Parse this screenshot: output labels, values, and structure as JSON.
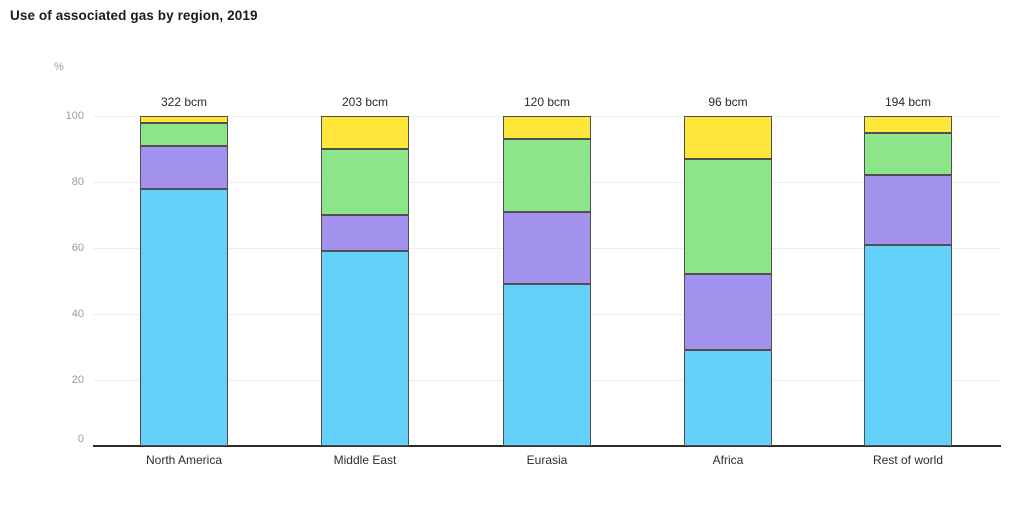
{
  "chart_data": {
    "type": "bar",
    "stacked": true,
    "title": "Use of associated gas by region, 2019",
    "unit_label": "%",
    "categories": [
      "North America",
      "Middle East",
      "Eurasia",
      "Africa",
      "Rest of world"
    ],
    "totals": [
      "322 bcm",
      "203 bcm",
      "120 bcm",
      "96 bcm",
      "194 bcm"
    ],
    "series": [
      {
        "name": "series-blue",
        "color": "#63d1fa",
        "values": [
          78,
          59,
          49,
          29,
          61
        ]
      },
      {
        "name": "series-purple",
        "color": "#a392ed",
        "values": [
          13,
          11,
          22,
          23,
          21
        ]
      },
      {
        "name": "series-green",
        "color": "#8de58a",
        "values": [
          7,
          20,
          22,
          35,
          13
        ]
      },
      {
        "name": "series-yellow",
        "color": "#ffe63a",
        "values": [
          2,
          10,
          7,
          13,
          5
        ]
      }
    ],
    "ylim": [
      0,
      100
    ],
    "yticks": [
      0,
      20,
      40,
      60,
      80,
      100
    ],
    "grid": true,
    "legend": "none",
    "segment_border_color": "#4f4f4f",
    "gridline_color": "#ededed",
    "axis_line_color": "#2b2b2b"
  }
}
